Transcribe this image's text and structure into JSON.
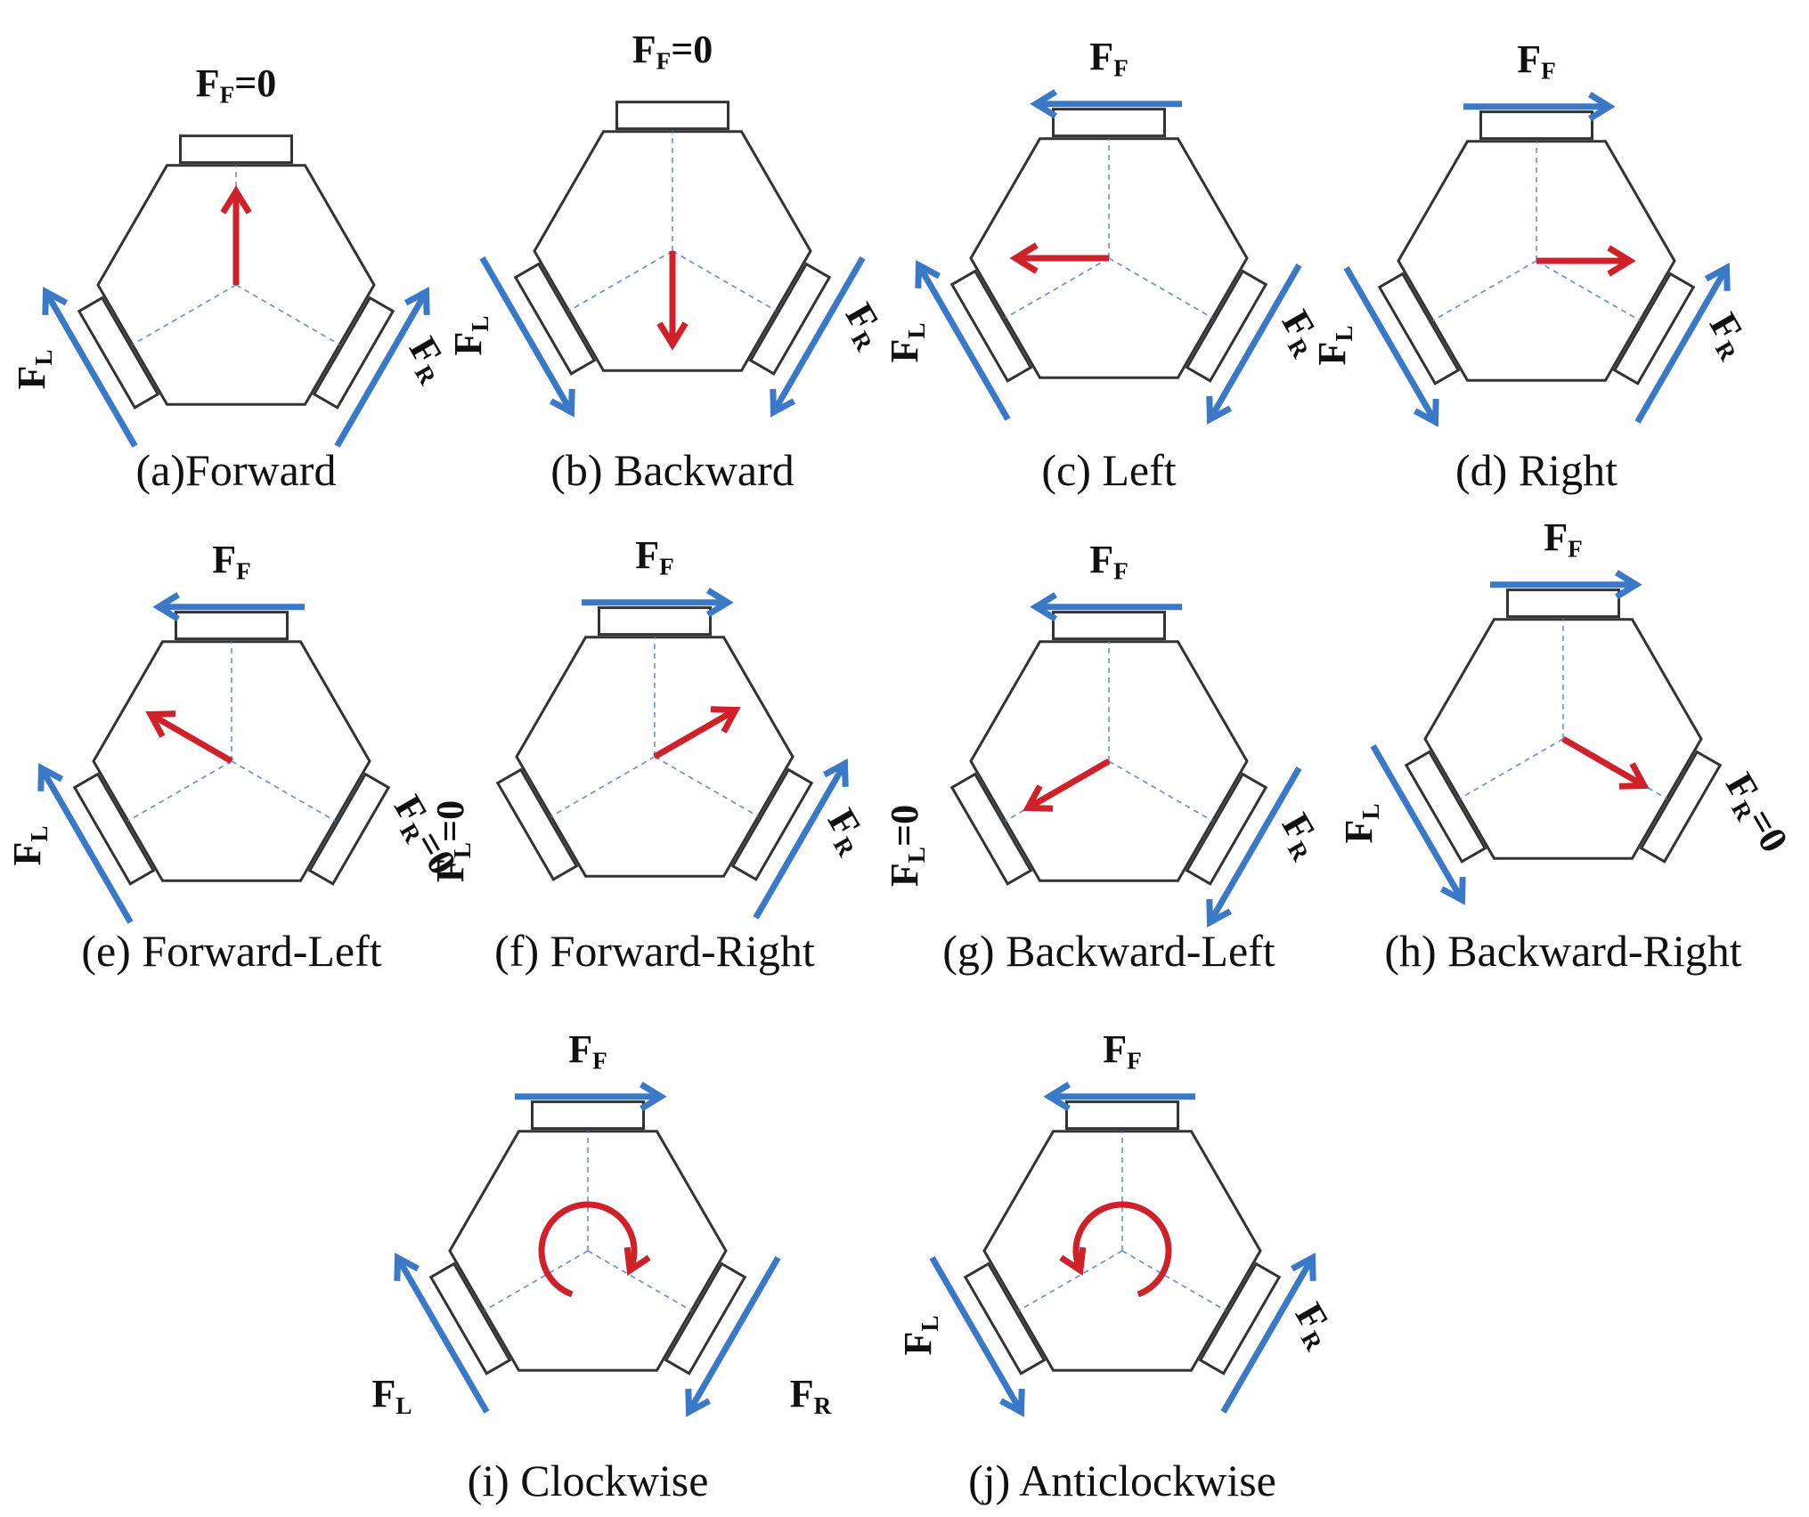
{
  "colors": {
    "wheel_force": "#3a78c8",
    "motion": "#d0202a",
    "outline": "#333333",
    "guide": "#6f8fd0"
  },
  "panels": [
    {
      "id": "a",
      "caption": "(a)Forward",
      "labels": {
        "front": "F",
        "front_sub": "F",
        "front_suffix": "=0",
        "left": "F",
        "left_sub": "L",
        "left_suffix": "",
        "right": "F",
        "right_sub": "R",
        "right_suffix": ""
      },
      "forces": {
        "front": "zero",
        "left": "up",
        "right": "up"
      },
      "motion": {
        "type": "translate",
        "angle_deg": -90
      }
    },
    {
      "id": "b",
      "caption": "(b) Backward",
      "labels": {
        "front": "F",
        "front_sub": "F",
        "front_suffix": "=0",
        "left": "F",
        "left_sub": "L",
        "left_suffix": "",
        "right": "F",
        "right_sub": "R",
        "right_suffix": ""
      },
      "forces": {
        "front": "zero",
        "left": "down",
        "right": "down"
      },
      "motion": {
        "type": "translate",
        "angle_deg": 90
      }
    },
    {
      "id": "c",
      "caption": "(c) Left",
      "labels": {
        "front": "F",
        "front_sub": "F",
        "front_suffix": "",
        "left": "F",
        "left_sub": "L",
        "left_suffix": "",
        "right": "F",
        "right_sub": "R",
        "right_suffix": ""
      },
      "forces": {
        "front": "left",
        "left": "up",
        "right": "down"
      },
      "motion": {
        "type": "translate",
        "angle_deg": 180
      }
    },
    {
      "id": "d",
      "caption": "(d) Right",
      "labels": {
        "front": "F",
        "front_sub": "F",
        "front_suffix": "",
        "left": "F",
        "left_sub": "L",
        "left_suffix": "",
        "right": "F",
        "right_sub": "R",
        "right_suffix": ""
      },
      "forces": {
        "front": "right",
        "left": "down",
        "right": "up"
      },
      "motion": {
        "type": "translate",
        "angle_deg": 0
      }
    },
    {
      "id": "e",
      "caption": "(e) Forward-Left",
      "labels": {
        "front": "F",
        "front_sub": "F",
        "front_suffix": "",
        "left": "F",
        "left_sub": "L",
        "left_suffix": "",
        "right": "F",
        "right_sub": "R",
        "right_suffix": "=0"
      },
      "forces": {
        "front": "left",
        "left": "up",
        "right": "zero"
      },
      "motion": {
        "type": "translate",
        "angle_deg": -150
      }
    },
    {
      "id": "f",
      "caption": "(f) Forward-Right",
      "labels": {
        "front": "F",
        "front_sub": "F",
        "front_suffix": "",
        "left": "F",
        "left_sub": "L",
        "left_suffix": "=0",
        "right": "F",
        "right_sub": "R",
        "right_suffix": ""
      },
      "forces": {
        "front": "right",
        "left": "zero",
        "right": "up"
      },
      "motion": {
        "type": "translate",
        "angle_deg": -30
      }
    },
    {
      "id": "g",
      "caption": "(g) Backward-Left",
      "labels": {
        "front": "F",
        "front_sub": "F",
        "front_suffix": "",
        "left": "F",
        "left_sub": "L",
        "left_suffix": "=0",
        "right": "F",
        "right_sub": "R",
        "right_suffix": ""
      },
      "forces": {
        "front": "left",
        "left": "zero",
        "right": "down"
      },
      "motion": {
        "type": "translate",
        "angle_deg": 150
      }
    },
    {
      "id": "h",
      "caption": "(h) Backward-Right",
      "labels": {
        "front": "F",
        "front_sub": "F",
        "front_suffix": "",
        "left": "F",
        "left_sub": "L",
        "left_suffix": "",
        "right": "F",
        "right_sub": "R",
        "right_suffix": "=0"
      },
      "forces": {
        "front": "right",
        "left": "down",
        "right": "zero"
      },
      "motion": {
        "type": "translate",
        "angle_deg": 30
      }
    },
    {
      "id": "i",
      "caption": "(i) Clockwise",
      "labels": {
        "front": "F",
        "front_sub": "F",
        "front_suffix": "",
        "left": "F",
        "left_sub": "L",
        "left_suffix": "",
        "right": "F",
        "right_sub": "R",
        "right_suffix": ""
      },
      "forces": {
        "front": "right",
        "left": "up",
        "right": "down"
      },
      "motion": {
        "type": "rotate",
        "direction": "clockwise"
      }
    },
    {
      "id": "j",
      "caption": "(j) Anticlockwise",
      "labels": {
        "front": "F",
        "front_sub": "F",
        "front_suffix": "",
        "left": "F",
        "left_sub": "L",
        "left_suffix": "",
        "right": "F",
        "right_sub": "R",
        "right_suffix": ""
      },
      "forces": {
        "front": "left",
        "left": "down",
        "right": "up"
      },
      "motion": {
        "type": "rotate",
        "direction": "anticlockwise"
      }
    }
  ]
}
